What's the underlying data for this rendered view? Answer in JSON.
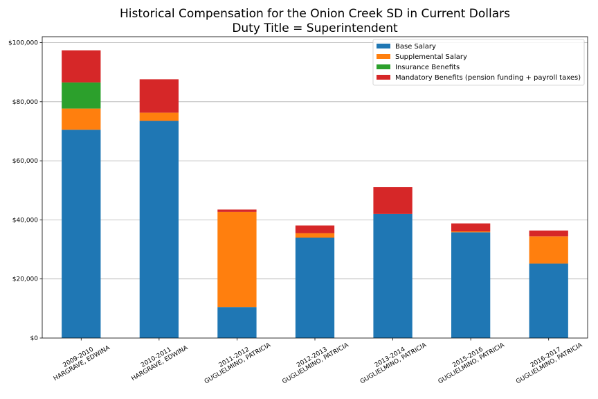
{
  "chart_data": {
    "type": "bar",
    "stacked": true,
    "title": "Historical Compensation for the Onion Creek SD in Current Dollars",
    "subtitle": "Duty Title = Superintendent",
    "xlabel": "",
    "ylabel": "",
    "ylim": [
      0,
      102000
    ],
    "yticks": [
      0,
      20000,
      40000,
      60000,
      80000,
      100000
    ],
    "ytick_labels": [
      "$0",
      "$20,000",
      "$40,000",
      "$60,000",
      "$80,000",
      "$100,000"
    ],
    "grid": "y",
    "legend_position": "top-right",
    "categories": [
      [
        "2009-2010",
        "HARGRAVE, EDWINA"
      ],
      [
        "2010-2011",
        "HARGRAVE, EDWINA"
      ],
      [
        "2011-2012",
        "GUGLIELMINO, PATRICIA"
      ],
      [
        "2012-2013",
        "GUGLIELMINO, PATRICIA"
      ],
      [
        "2013-2014",
        "GUGLIELMINO, PATRICIA"
      ],
      [
        "2015-2016",
        "GUGLIELMINO, PATRICIA"
      ],
      [
        "2016-2017",
        "GUGLIELMINO, PATRICIA"
      ]
    ],
    "series": [
      {
        "name": "Base Salary",
        "color": "#1f77b4",
        "values": [
          70500,
          73500,
          10500,
          34000,
          42000,
          35800,
          25200
        ]
      },
      {
        "name": "Supplemental Salary",
        "color": "#ff7f0e",
        "values": [
          7200,
          2800,
          32200,
          1500,
          0,
          300,
          9200
        ]
      },
      {
        "name": "Insurance Benefits",
        "color": "#2ca02c",
        "values": [
          8800,
          0,
          0,
          0,
          0,
          0,
          0
        ]
      },
      {
        "name": "Mandatory Benefits (pension funding + payroll taxes)",
        "color": "#d62728",
        "values": [
          10900,
          11300,
          800,
          2600,
          9100,
          2700,
          2000
        ]
      }
    ]
  }
}
